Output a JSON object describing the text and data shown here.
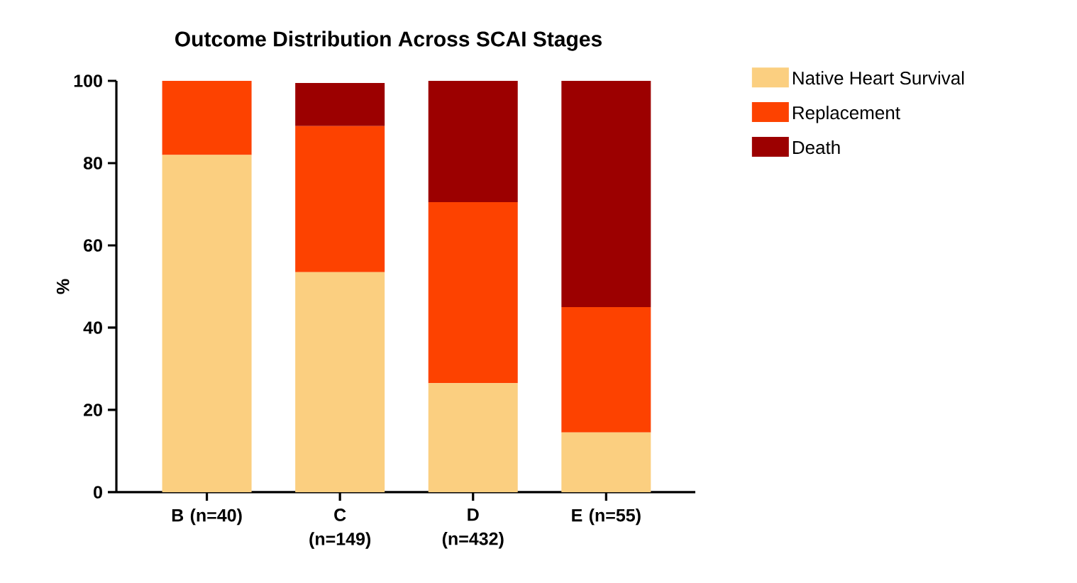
{
  "chart_data": {
    "type": "bar",
    "title": "Outcome Distribution Across SCAI Stages",
    "ylabel": "%",
    "categories": [
      "B (n=40)",
      "C (n=149)",
      "D (n=432)",
      "E (n=55)"
    ],
    "series": [
      {
        "name": "Native Heart Survival",
        "color": "#fbcf80",
        "values": [
          82,
          53.5,
          26.5,
          14.5
        ]
      },
      {
        "name": "Replacement",
        "color": "#fd4200",
        "values": [
          18,
          35.5,
          44,
          30.5
        ]
      },
      {
        "name": "Death",
        "color": "#9c0000",
        "values": [
          null,
          10.5,
          29.5,
          55
        ]
      }
    ],
    "stacked": true,
    "ylim": [
      0,
      100
    ],
    "yticks": [
      0,
      20,
      40,
      60,
      80,
      100
    ],
    "grid": false,
    "legend": "top right"
  }
}
